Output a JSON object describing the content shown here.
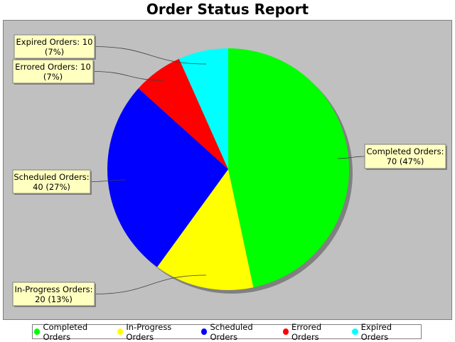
{
  "chart_data": {
    "type": "pie",
    "title": "Order Status Report",
    "background": "#c0c0c0",
    "slices": [
      {
        "name": "Completed Orders",
        "value": 70,
        "percent": "47%",
        "label_line1": "Completed Orders:",
        "label_line2": "70 (47%)",
        "color": "#00ff00"
      },
      {
        "name": "In-Progress Orders",
        "value": 20,
        "percent": "13%",
        "label_line1": "In-Progress Orders:",
        "label_line2": "20 (13%)",
        "color": "#ffff00"
      },
      {
        "name": "Scheduled Orders",
        "value": 40,
        "percent": "27%",
        "label_line1": "Scheduled Orders:",
        "label_line2": "40 (27%)",
        "color": "#0000ff"
      },
      {
        "name": "Errored Orders",
        "value": 10,
        "percent": "7%",
        "label_line1": "Errored Orders: 10",
        "label_line2": "(7%)",
        "color": "#ff0000"
      },
      {
        "name": "Expired Orders",
        "value": 10,
        "percent": "7%",
        "label_line1": "Expired Orders: 10",
        "label_line2": "(7%)",
        "color": "#00ffff"
      }
    ],
    "legend_position": "bottom"
  }
}
